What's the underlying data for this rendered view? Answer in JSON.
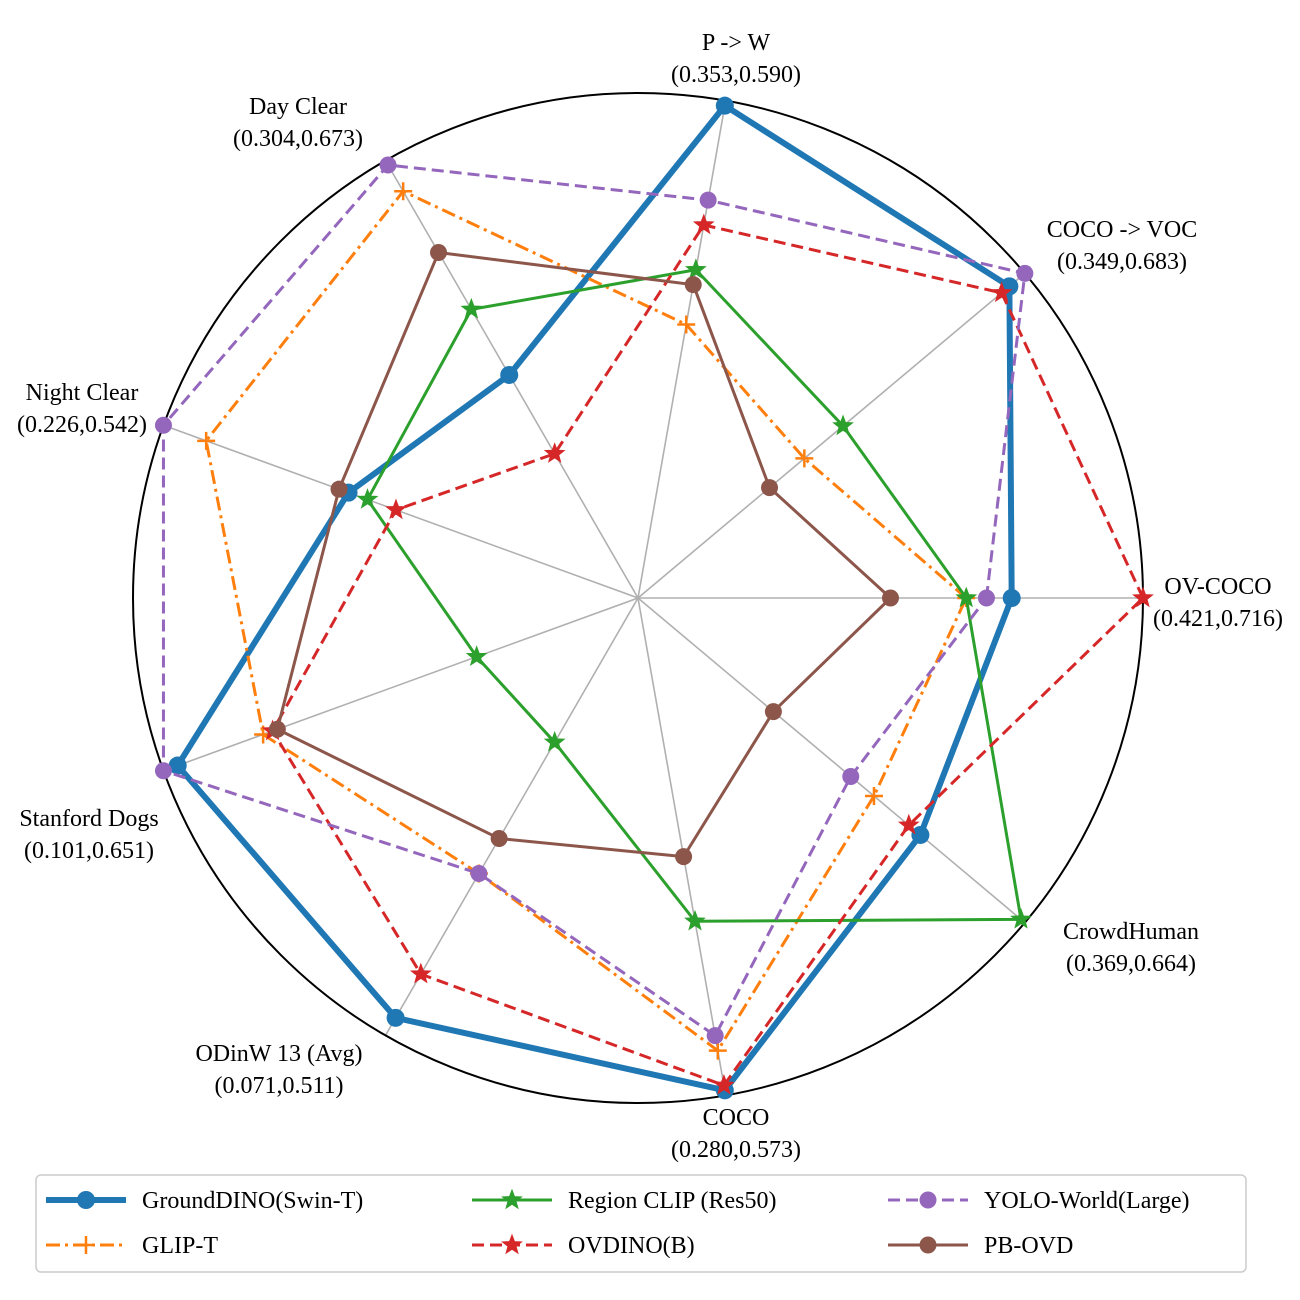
{
  "chart_data": {
    "type": "radar",
    "axes": [
      {
        "name": "OV-COCO",
        "range": "(0.421,0.716)",
        "min": 0.421,
        "max": 0.716
      },
      {
        "name": "COCO -> VOC",
        "range": "(0.349,0.683)",
        "min": 0.349,
        "max": 0.683
      },
      {
        "name": "P -> W",
        "range": "(0.353,0.590)",
        "min": 0.353,
        "max": 0.59
      },
      {
        "name": "Day Clear",
        "range": "(0.304,0.673)",
        "min": 0.304,
        "max": 0.673
      },
      {
        "name": "Night Clear",
        "range": "(0.226,0.542)",
        "min": 0.226,
        "max": 0.542
      },
      {
        "name": "Stanford Dogs",
        "range": "(0.101,0.651)",
        "min": 0.101,
        "max": 0.651
      },
      {
        "name": "ODinW 13 (Avg)",
        "range": "(0.071,0.511)",
        "min": 0.071,
        "max": 0.511
      },
      {
        "name": "COCO",
        "range": "(0.280,0.573)",
        "min": 0.28,
        "max": 0.573
      },
      {
        "name": "CrowdHuman",
        "range": "(0.369,0.664)",
        "min": 0.369,
        "max": 0.664
      }
    ],
    "radius_scale": "normalized 0-1 per axis",
    "series": [
      {
        "name": "GroundDINO(Swin-T)",
        "color": "#1f77b4",
        "marker": "circle",
        "dash": "solid",
        "width": 6,
        "values": [
          0.74,
          0.96,
          0.99,
          0.51,
          0.61,
          0.97,
          0.96,
          0.99,
          0.73
        ]
      },
      {
        "name": "GLIP-T",
        "color": "#ff7f0e",
        "marker": "plus",
        "dash": "dashdot",
        "width": 3,
        "values": [
          0.65,
          0.43,
          0.55,
          0.93,
          0.91,
          0.79,
          0.63,
          0.91,
          0.61
        ]
      },
      {
        "name": "Region CLIP (Res50)",
        "color": "#2ca02c",
        "marker": "star",
        "dash": "solid",
        "width": 3,
        "values": [
          0.65,
          0.53,
          0.66,
          0.66,
          0.57,
          0.34,
          0.33,
          0.65,
          0.99
        ]
      },
      {
        "name": "OVDINO(B)",
        "color": "#d62728",
        "marker": "star",
        "dash": "dashed",
        "width": 3,
        "values": [
          1.0,
          0.94,
          0.75,
          0.33,
          0.51,
          0.77,
          0.86,
          0.98,
          0.7
        ]
      },
      {
        "name": "YOLO-World(Large)",
        "color": "#9467bd",
        "marker": "circle",
        "dash": "dashed",
        "width": 3,
        "values": [
          0.69,
          1.0,
          0.8,
          0.99,
          1.0,
          1.0,
          0.63,
          0.88,
          0.55
        ]
      },
      {
        "name": "PB-OVD",
        "color": "#8c564b",
        "marker": "circle",
        "dash": "solid",
        "width": 3,
        "values": [
          0.5,
          0.34,
          0.63,
          0.79,
          0.63,
          0.76,
          0.55,
          0.52,
          0.35
        ]
      }
    ],
    "legend": {
      "placement": "bottom",
      "columns": 3
    },
    "grid": true
  }
}
